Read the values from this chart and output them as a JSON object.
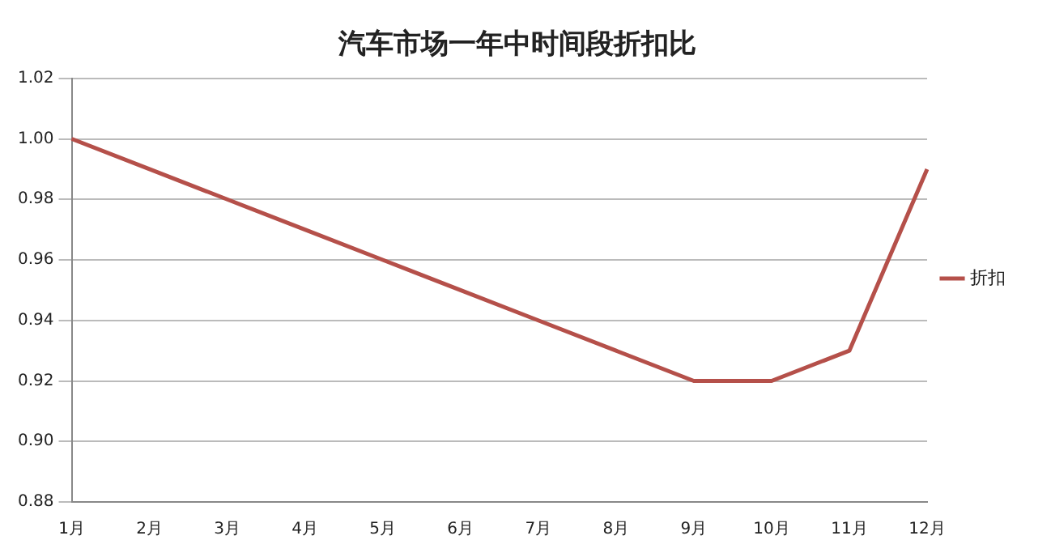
{
  "chart_data": {
    "type": "line",
    "title": "汽车市场一年中时间段折扣比",
    "categories": [
      "1月",
      "2月",
      "3月",
      "4月",
      "5月",
      "6月",
      "7月",
      "8月",
      "9月",
      "10月",
      "11月",
      "12月"
    ],
    "series": [
      {
        "name": "折扣",
        "color": "#b5504a",
        "values": [
          1.0,
          0.99,
          0.98,
          0.97,
          0.96,
          0.95,
          0.94,
          0.93,
          0.92,
          0.92,
          0.93,
          0.99
        ]
      }
    ],
    "ylim": [
      0.88,
      1.02
    ],
    "yticks": [
      {
        "value": 0.88,
        "label": "0.88"
      },
      {
        "value": 0.9,
        "label": "0.90"
      },
      {
        "value": 0.92,
        "label": "0.92"
      },
      {
        "value": 0.94,
        "label": "0.94"
      },
      {
        "value": 0.96,
        "label": "0.96"
      },
      {
        "value": 0.98,
        "label": "0.98"
      },
      {
        "value": 1,
        "label": "1.00"
      },
      {
        "value": 1.02,
        "label": "1.02"
      }
    ],
    "grid": "y",
    "legend": "right",
    "marker": "none",
    "line_style": "solid"
  }
}
